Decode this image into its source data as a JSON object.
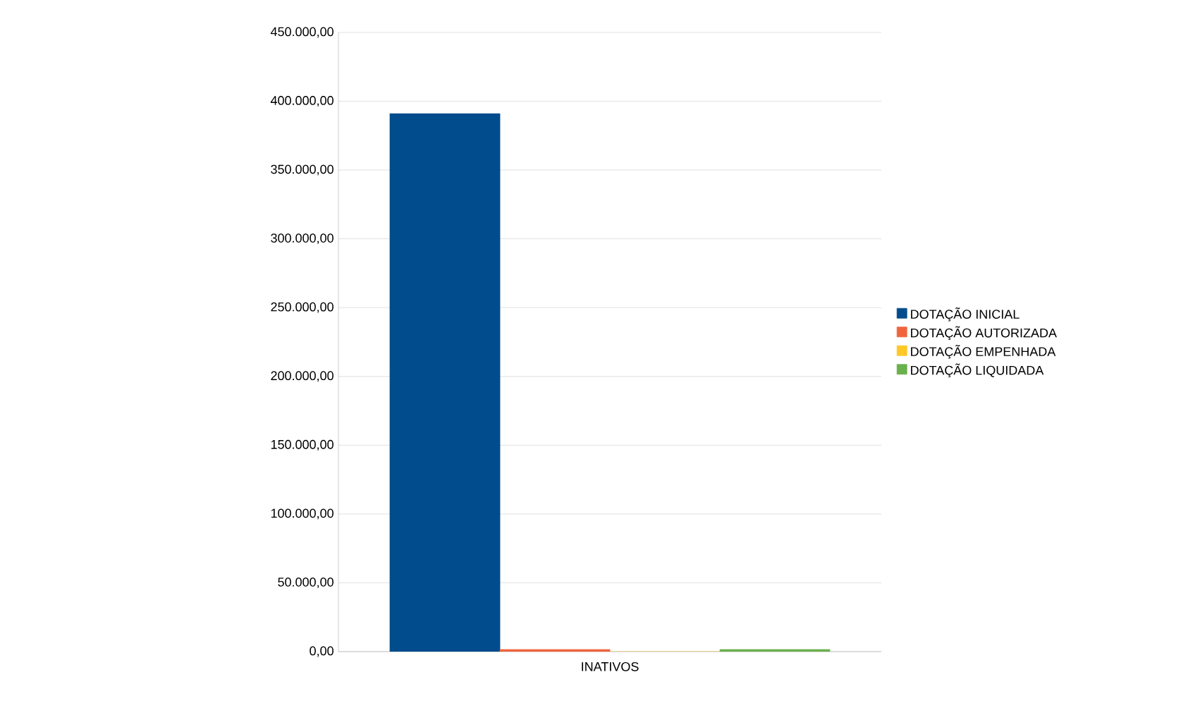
{
  "chart_data": {
    "type": "bar",
    "categories": [
      "INATIVOS"
    ],
    "series": [
      {
        "name": "DOTAÇÃO INICIAL",
        "color": "#004c8c",
        "values": [
          391000
        ]
      },
      {
        "name": "DOTAÇÃO AUTORIZADA",
        "color": "#f0643c",
        "values": [
          1500
        ]
      },
      {
        "name": "DOTAÇÃO EMPENHADA",
        "color": "#ffc828",
        "values": [
          0
        ]
      },
      {
        "name": "DOTAÇÃO LIQUIDADA",
        "color": "#6ab04c",
        "values": [
          1500
        ]
      }
    ],
    "ylim": [
      0,
      450000
    ],
    "yticks": [
      {
        "value": 0,
        "label": "0,00"
      },
      {
        "value": 50000,
        "label": "50.000,00"
      },
      {
        "value": 100000,
        "label": "100.000,00"
      },
      {
        "value": 150000,
        "label": "150.000,00"
      },
      {
        "value": 200000,
        "label": "200.000,00"
      },
      {
        "value": 250000,
        "label": "250.000,00"
      },
      {
        "value": 300000,
        "label": "300.000,00"
      },
      {
        "value": 350000,
        "label": "350.000,00"
      },
      {
        "value": 400000,
        "label": "400.000,00"
      },
      {
        "value": 450000,
        "label": "450.000,00"
      }
    ],
    "grid": "y",
    "legend": "right"
  }
}
